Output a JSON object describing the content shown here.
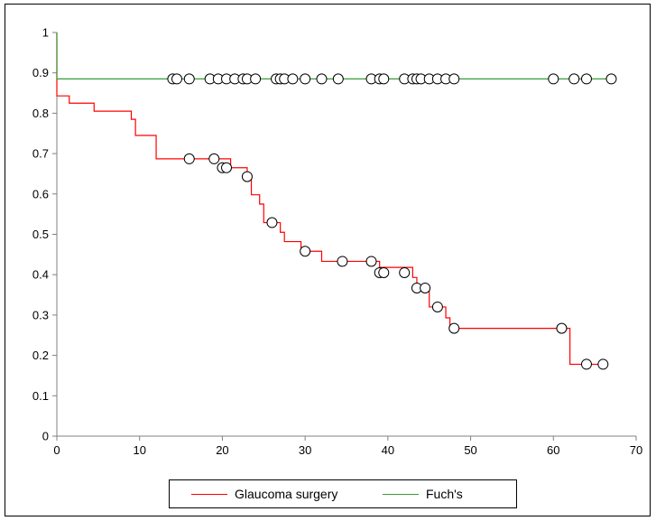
{
  "chart_data": {
    "type": "line",
    "title": "",
    "xlabel": "",
    "ylabel": "",
    "xlim": [
      0,
      70
    ],
    "ylim": [
      0,
      1
    ],
    "xticks": [
      0,
      10,
      20,
      30,
      40,
      50,
      60,
      70
    ],
    "yticks": [
      0,
      0.1,
      0.2,
      0.3,
      0.4,
      0.5,
      0.6,
      0.7,
      0.8,
      0.9,
      1
    ],
    "grid": false,
    "legend_position": "bottom",
    "series": [
      {
        "name": "Glaucoma surgery",
        "color": "#ff0000",
        "step": [
          [
            0,
            1
          ],
          [
            0,
            0.843
          ],
          [
            1.5,
            0.843
          ],
          [
            1.5,
            0.825
          ],
          [
            4.5,
            0.825
          ],
          [
            4.5,
            0.805
          ],
          [
            9,
            0.805
          ],
          [
            9,
            0.785
          ],
          [
            9.5,
            0.785
          ],
          [
            9.5,
            0.745
          ],
          [
            12,
            0.745
          ],
          [
            12,
            0.687
          ],
          [
            21,
            0.687
          ],
          [
            21,
            0.665
          ],
          [
            23,
            0.665
          ],
          [
            23,
            0.643
          ],
          [
            23.5,
            0.643
          ],
          [
            23.5,
            0.598
          ],
          [
            24.5,
            0.598
          ],
          [
            24.5,
            0.575
          ],
          [
            25,
            0.575
          ],
          [
            25,
            0.529
          ],
          [
            27,
            0.529
          ],
          [
            27,
            0.505
          ],
          [
            27.5,
            0.505
          ],
          [
            27.5,
            0.482
          ],
          [
            29.5,
            0.482
          ],
          [
            29.5,
            0.458
          ],
          [
            32,
            0.458
          ],
          [
            32,
            0.433
          ],
          [
            39,
            0.433
          ],
          [
            39,
            0.418
          ],
          [
            43,
            0.418
          ],
          [
            43,
            0.393
          ],
          [
            43.5,
            0.393
          ],
          [
            43.5,
            0.367
          ],
          [
            45,
            0.367
          ],
          [
            45,
            0.32
          ],
          [
            47,
            0.32
          ],
          [
            47,
            0.293
          ],
          [
            47.5,
            0.293
          ],
          [
            47.5,
            0.267
          ],
          [
            62,
            0.267
          ],
          [
            62,
            0.178
          ],
          [
            66,
            0.178
          ]
        ],
        "censored": [
          [
            16,
            0.687
          ],
          [
            19,
            0.687
          ],
          [
            20,
            0.665
          ],
          [
            20.5,
            0.665
          ],
          [
            23,
            0.643
          ],
          [
            26,
            0.529
          ],
          [
            30,
            0.458
          ],
          [
            34.5,
            0.433
          ],
          [
            38,
            0.433
          ],
          [
            39,
            0.405
          ],
          [
            39.5,
            0.405
          ],
          [
            42,
            0.405
          ],
          [
            43.5,
            0.367
          ],
          [
            44.5,
            0.367
          ],
          [
            46,
            0.32
          ],
          [
            48,
            0.267
          ],
          [
            61,
            0.267
          ],
          [
            64,
            0.178
          ],
          [
            66,
            0.178
          ]
        ]
      },
      {
        "name": "Fuch's",
        "color": "#3a9b3a",
        "step": [
          [
            0,
            1
          ],
          [
            0,
            0.885
          ],
          [
            67,
            0.885
          ]
        ],
        "censored": [
          [
            14,
            0.885
          ],
          [
            14.5,
            0.885
          ],
          [
            16,
            0.885
          ],
          [
            18.5,
            0.885
          ],
          [
            19.5,
            0.885
          ],
          [
            20.5,
            0.885
          ],
          [
            21.5,
            0.885
          ],
          [
            22.5,
            0.885
          ],
          [
            23,
            0.885
          ],
          [
            24,
            0.885
          ],
          [
            26.5,
            0.885
          ],
          [
            27,
            0.885
          ],
          [
            27.5,
            0.885
          ],
          [
            28.5,
            0.885
          ],
          [
            30,
            0.885
          ],
          [
            32,
            0.885
          ],
          [
            34,
            0.885
          ],
          [
            38,
            0.885
          ],
          [
            39,
            0.885
          ],
          [
            39.5,
            0.885
          ],
          [
            42,
            0.885
          ],
          [
            43,
            0.885
          ],
          [
            43.5,
            0.885
          ],
          [
            44,
            0.885
          ],
          [
            45,
            0.885
          ],
          [
            46,
            0.885
          ],
          [
            47,
            0.885
          ],
          [
            48,
            0.885
          ],
          [
            60,
            0.885
          ],
          [
            62.5,
            0.885
          ],
          [
            64,
            0.885
          ],
          [
            67,
            0.885
          ]
        ]
      }
    ]
  }
}
